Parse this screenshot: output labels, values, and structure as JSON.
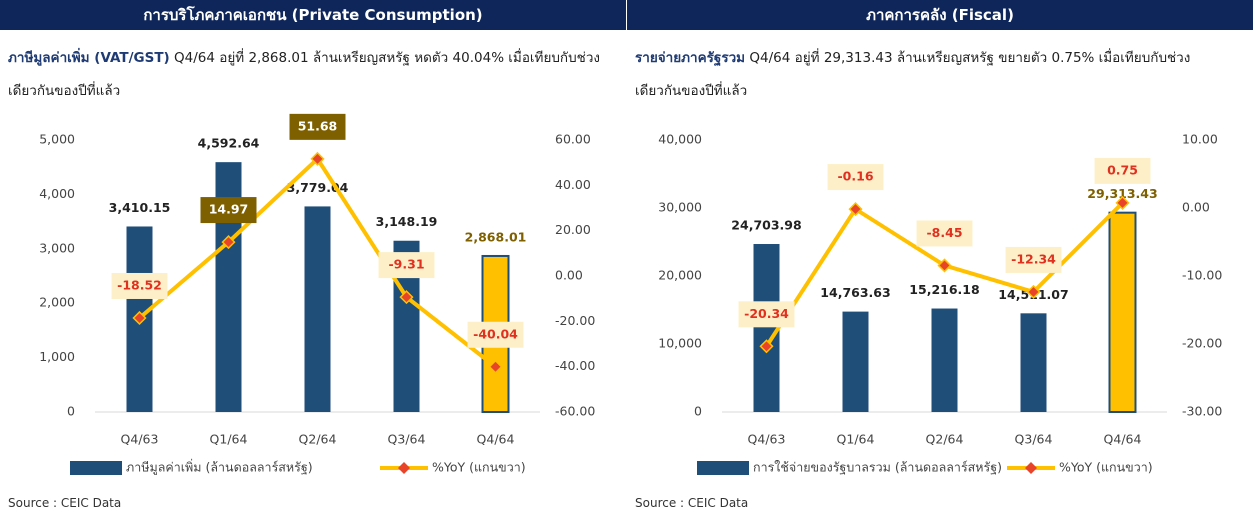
{
  "chart_data": [
    {
      "type": "bar-line",
      "header": "การบริโภคภาคเอกชน (Private Consumption)",
      "subtitle_bold": "ภาษีมูลค่าเพิ่ม (VAT/GST)",
      "subtitle": "Q4/64 อยู่ที่ 2,868.01 ล้านเหรียญสหรัฐ หดตัว 40.04% เมื่อเทียบกับช่วงเดียวกันของปีที่แล้ว",
      "source": "Source : CEIC Data",
      "categories": [
        "Q4/63",
        "Q1/64",
        "Q2/64",
        "Q3/64",
        "Q4/64"
      ],
      "series": [
        {
          "name": "ภาษีมูลค่าเพิ่ม (ล้านดอลลาร์สหรัฐ)",
          "color": "#1f4e79",
          "highlight_color": "#ffc000",
          "values": [
            3410.15,
            4592.64,
            3779.04,
            3148.19,
            2868.01
          ],
          "value_labels": [
            "3,410.15",
            "4,592.64",
            "3,779.04",
            "3,148.19",
            "2,868.01"
          ]
        },
        {
          "name": "%YoY (แกนขวา)",
          "color": "#ffc000",
          "marker_color": "#e8442a",
          "axis": "y2",
          "values": [
            -18.52,
            14.97,
            51.68,
            -9.31,
            -40.04
          ],
          "label_fills": [
            "#fdf0c8",
            "#7f6000",
            "#7f6000",
            "#fdf0c8",
            "#fdf0c8"
          ]
        }
      ],
      "ylim": [
        0,
        5000
      ],
      "yticks": [
        0,
        {
          "value": 1000,
          "label": "1,000"
        },
        {
          "value": 2000,
          "label": "2,000"
        },
        {
          "value": 3000,
          "label": "3,000"
        },
        {
          "value": 4000,
          "label": "4,000"
        },
        {
          "value": 5000,
          "label": "5,000"
        }
      ],
      "y2lim": [
        -60,
        60
      ],
      "y2ticks": [
        {
          "value": -60,
          "label": "-60.00"
        },
        {
          "value": -40,
          "label": "-40.00"
        },
        {
          "value": -20,
          "label": "-20.00"
        },
        {
          "value": 0,
          "label": "0.00"
        },
        {
          "value": 20,
          "label": "20.00"
        },
        {
          "value": 40,
          "label": "40.00"
        },
        {
          "value": 60,
          "label": "60.00"
        }
      ]
    },
    {
      "type": "bar-line",
      "header": "ภาคการคลัง (Fiscal)",
      "subtitle_bold": "รายจ่ายภาครัฐรวม",
      "subtitle": "Q4/64 อยู่ที่ 29,313.43 ล้านเหรียญสหรัฐ ขยายตัว 0.75% เมื่อเทียบกับช่วงเดียวกันของปีที่แล้ว",
      "source": "Source : CEIC Data",
      "categories": [
        "Q4/63",
        "Q1/64",
        "Q2/64",
        "Q3/64",
        "Q4/64"
      ],
      "series": [
        {
          "name": "การใช้จ่ายของรัฐบาลรวม (ล้านดอลลาร์สหรัฐ)",
          "color": "#1f4e79",
          "highlight_color": "#ffc000",
          "values": [
            24703.98,
            14763.63,
            15216.18,
            14511.07,
            29313.43
          ],
          "value_labels": [
            "24,703.98",
            "14,763.63",
            "15,216.18",
            "14,511.07",
            "29,313.43"
          ]
        },
        {
          "name": "%YoY (แกนขวา)",
          "color": "#ffc000",
          "marker_color": "#e8442a",
          "axis": "y2",
          "values": [
            -20.34,
            -0.16,
            -8.45,
            -12.34,
            0.75
          ],
          "label_fills": [
            "#fdf0c8",
            "#fdf0c8",
            "#fdf0c8",
            "#fdf0c8",
            "#fdf0c8"
          ]
        }
      ],
      "ylim": [
        0,
        40000
      ],
      "yticks": [
        0,
        {
          "value": 10000,
          "label": "10,000"
        },
        {
          "value": 20000,
          "label": "20,000"
        },
        {
          "value": 30000,
          "label": "30,000"
        },
        {
          "value": 40000,
          "label": "40,000"
        }
      ],
      "y2lim": [
        -30,
        10
      ],
      "y2ticks": [
        {
          "value": -30,
          "label": "-30.00"
        },
        {
          "value": -20,
          "label": "-20.00"
        },
        {
          "value": -10,
          "label": "-10.00"
        },
        {
          "value": 0,
          "label": "0.00"
        },
        {
          "value": 10,
          "label": "10.00"
        }
      ]
    }
  ]
}
